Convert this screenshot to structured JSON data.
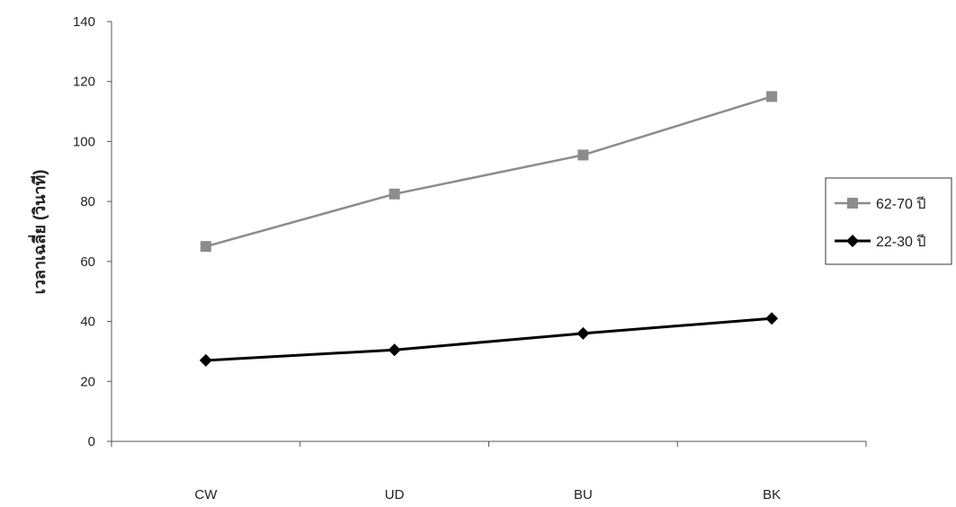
{
  "chart_data": {
    "type": "line",
    "title": "",
    "xlabel": "",
    "ylabel": "เวลาเฉลี่ย (วินาที)",
    "categories": [
      "CW",
      "UD",
      "BU",
      "BK"
    ],
    "ylim": [
      0,
      140
    ],
    "yticks": [
      0,
      20,
      40,
      60,
      80,
      100,
      120,
      140
    ],
    "grid": false,
    "legend_position": "right",
    "series": [
      {
        "name": "62-70 ปี",
        "values": [
          65,
          82.5,
          95.5,
          115
        ],
        "color": "#8c8c8c",
        "marker": "square"
      },
      {
        "name": "22-30 ปี",
        "values": [
          27,
          30.5,
          36,
          41
        ],
        "color": "#000000",
        "marker": "diamond"
      }
    ]
  }
}
